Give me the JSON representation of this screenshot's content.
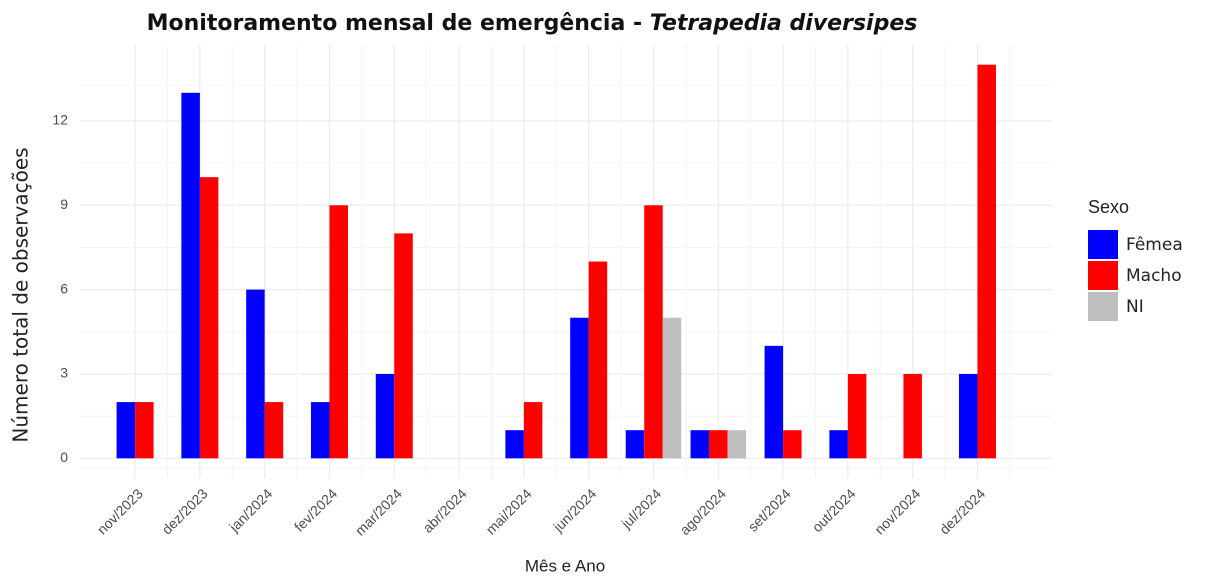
{
  "chart_data": {
    "type": "bar",
    "title": "Monitoramento mensal de emergência - ",
    "title_species": "Tetrapedia diversipes",
    "x_label": "Mês e Ano",
    "y_label": "Número total de observações",
    "legend_title": "Sexo",
    "categories": [
      "nov/2023",
      "dez/2023",
      "jan/2024",
      "fev/2024",
      "mar/2024",
      "abr/2024",
      "mai/2024",
      "jun/2024",
      "jul/2024",
      "ago/2024",
      "set/2024",
      "out/2024",
      "nov/2024",
      "dez/2024"
    ],
    "series": [
      {
        "name": "Fêmea",
        "color": "#0000ff",
        "values": [
          2,
          13,
          6,
          2,
          3,
          null,
          1,
          5,
          1,
          1,
          4,
          1,
          null,
          3
        ]
      },
      {
        "name": "Macho",
        "color": "#ff0000",
        "values": [
          2,
          10,
          2,
          9,
          8,
          null,
          2,
          7,
          9,
          1,
          1,
          3,
          3,
          14
        ]
      },
      {
        "name": "NI",
        "color": "#bebebe",
        "values": [
          null,
          null,
          null,
          null,
          null,
          null,
          null,
          null,
          5,
          1,
          null,
          null,
          null,
          null
        ]
      }
    ],
    "ylim": [
      -0.7,
      14.7
    ],
    "yticks": [
      0,
      3,
      6,
      9,
      12
    ],
    "grid": true
  }
}
